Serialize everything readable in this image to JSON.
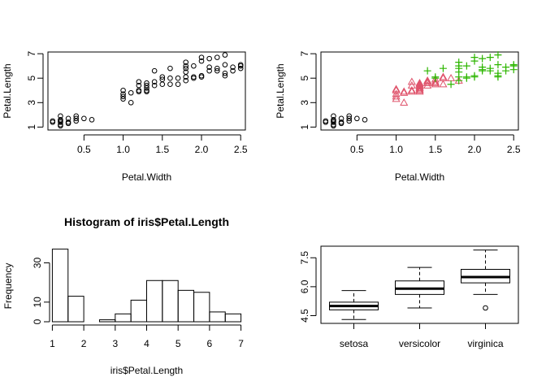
{
  "chart_data": [
    {
      "type": "scatter",
      "xlabel": "Petal.Width",
      "ylabel": "Petal.Length",
      "xlim": [
        0.04,
        2.56
      ],
      "ylim": [
        0.76,
        7.14
      ],
      "xticks": [
        "0.5",
        "1.0",
        "1.5",
        "2.0",
        "2.5"
      ],
      "yticks": [
        "1",
        "3",
        "5",
        "7"
      ],
      "marker": "open circle",
      "series": [
        {
          "color": "#000000",
          "points": [
            [
              0.1,
              1.4
            ],
            [
              0.1,
              1.5
            ],
            [
              0.2,
              1.1
            ],
            [
              0.2,
              1.2
            ],
            [
              0.2,
              1.4
            ],
            [
              0.2,
              1.5
            ],
            [
              0.2,
              1.6
            ],
            [
              0.2,
              1.9
            ],
            [
              0.3,
              1.3
            ],
            [
              0.3,
              1.4
            ],
            [
              0.3,
              1.7
            ],
            [
              0.4,
              1.5
            ],
            [
              0.4,
              1.7
            ],
            [
              0.4,
              1.9
            ],
            [
              0.5,
              1.7
            ],
            [
              0.6,
              1.6
            ],
            [
              1.0,
              3.3
            ],
            [
              1.0,
              3.5
            ],
            [
              1.0,
              3.7
            ],
            [
              1.0,
              4.0
            ],
            [
              1.1,
              3.0
            ],
            [
              1.1,
              3.8
            ],
            [
              1.2,
              3.9
            ],
            [
              1.2,
              4.0
            ],
            [
              1.2,
              4.4
            ],
            [
              1.2,
              4.7
            ],
            [
              1.3,
              3.9
            ],
            [
              1.3,
              4.0
            ],
            [
              1.3,
              4.2
            ],
            [
              1.3,
              4.4
            ],
            [
              1.3,
              4.6
            ],
            [
              1.4,
              4.4
            ],
            [
              1.4,
              4.7
            ],
            [
              1.4,
              5.6
            ],
            [
              1.5,
              4.5
            ],
            [
              1.5,
              4.9
            ],
            [
              1.5,
              5.1
            ],
            [
              1.6,
              4.5
            ],
            [
              1.6,
              5.0
            ],
            [
              1.6,
              5.8
            ],
            [
              1.7,
              4.5
            ],
            [
              1.7,
              5.0
            ],
            [
              1.8,
              4.8
            ],
            [
              1.8,
              5.1
            ],
            [
              1.8,
              5.5
            ],
            [
              1.8,
              5.8
            ],
            [
              1.8,
              6.0
            ],
            [
              1.8,
              6.3
            ],
            [
              1.9,
              5.0
            ],
            [
              1.9,
              5.1
            ],
            [
              1.9,
              6.0
            ],
            [
              2.0,
              5.1
            ],
            [
              2.0,
              5.2
            ],
            [
              2.0,
              6.4
            ],
            [
              2.0,
              6.7
            ],
            [
              2.1,
              5.6
            ],
            [
              2.1,
              5.9
            ],
            [
              2.1,
              6.6
            ],
            [
              2.2,
              5.6
            ],
            [
              2.2,
              5.8
            ],
            [
              2.2,
              6.7
            ],
            [
              2.3,
              5.2
            ],
            [
              2.3,
              5.4
            ],
            [
              2.3,
              6.1
            ],
            [
              2.3,
              6.9
            ],
            [
              2.4,
              5.6
            ],
            [
              2.4,
              5.9
            ],
            [
              2.5,
              5.8
            ],
            [
              2.5,
              6.1
            ],
            [
              2.5,
              6.0
            ]
          ]
        }
      ]
    },
    {
      "type": "scatter",
      "xlabel": "Petal.Width",
      "ylabel": "Petal.Length",
      "xlim": [
        0.04,
        2.56
      ],
      "ylim": [
        0.76,
        7.14
      ],
      "xticks": [
        "0.5",
        "1.0",
        "1.5",
        "2.0",
        "2.5"
      ],
      "yticks": [
        "1",
        "3",
        "5",
        "7"
      ],
      "series": [
        {
          "marker": "open circle",
          "color": "#000000",
          "points": [
            [
              0.1,
              1.4
            ],
            [
              0.1,
              1.5
            ],
            [
              0.2,
              1.1
            ],
            [
              0.2,
              1.2
            ],
            [
              0.2,
              1.4
            ],
            [
              0.2,
              1.5
            ],
            [
              0.2,
              1.6
            ],
            [
              0.2,
              1.9
            ],
            [
              0.3,
              1.3
            ],
            [
              0.3,
              1.4
            ],
            [
              0.3,
              1.7
            ],
            [
              0.4,
              1.5
            ],
            [
              0.4,
              1.7
            ],
            [
              0.4,
              1.9
            ],
            [
              0.5,
              1.7
            ],
            [
              0.6,
              1.6
            ]
          ]
        },
        {
          "marker": "open triangle",
          "color": "#DF536B",
          "points": [
            [
              1.0,
              3.3
            ],
            [
              1.0,
              3.5
            ],
            [
              1.0,
              3.7
            ],
            [
              1.0,
              4.0
            ],
            [
              1.0,
              4.1
            ],
            [
              1.1,
              3.0
            ],
            [
              1.1,
              3.8
            ],
            [
              1.1,
              3.9
            ],
            [
              1.2,
              3.9
            ],
            [
              1.2,
              4.0
            ],
            [
              1.2,
              4.4
            ],
            [
              1.2,
              4.7
            ],
            [
              1.3,
              3.9
            ],
            [
              1.3,
              4.0
            ],
            [
              1.3,
              4.1
            ],
            [
              1.3,
              4.2
            ],
            [
              1.3,
              4.3
            ],
            [
              1.3,
              4.4
            ],
            [
              1.3,
              4.5
            ],
            [
              1.3,
              4.6
            ],
            [
              1.4,
              4.4
            ],
            [
              1.4,
              4.6
            ],
            [
              1.4,
              4.7
            ],
            [
              1.4,
              4.8
            ],
            [
              1.5,
              4.5
            ],
            [
              1.5,
              4.6
            ],
            [
              1.5,
              4.7
            ],
            [
              1.5,
              4.9
            ],
            [
              1.6,
              4.5
            ],
            [
              1.6,
              5.0
            ],
            [
              1.6,
              5.1
            ],
            [
              1.7,
              5.0
            ],
            [
              1.8,
              4.8
            ]
          ]
        },
        {
          "marker": "plus",
          "color": "#2DB600",
          "points": [
            [
              1.4,
              5.6
            ],
            [
              1.5,
              5.0
            ],
            [
              1.5,
              5.1
            ],
            [
              1.6,
              5.8
            ],
            [
              1.7,
              4.5
            ],
            [
              1.8,
              4.8
            ],
            [
              1.8,
              5.1
            ],
            [
              1.8,
              5.5
            ],
            [
              1.8,
              5.8
            ],
            [
              1.8,
              6.0
            ],
            [
              1.8,
              6.3
            ],
            [
              1.9,
              5.0
            ],
            [
              1.9,
              5.1
            ],
            [
              1.9,
              6.0
            ],
            [
              2.0,
              5.1
            ],
            [
              2.0,
              5.2
            ],
            [
              2.0,
              6.4
            ],
            [
              2.0,
              6.7
            ],
            [
              2.1,
              5.6
            ],
            [
              2.1,
              5.7
            ],
            [
              2.1,
              5.9
            ],
            [
              2.1,
              6.6
            ],
            [
              2.2,
              5.6
            ],
            [
              2.2,
              5.8
            ],
            [
              2.2,
              6.7
            ],
            [
              2.3,
              5.1
            ],
            [
              2.3,
              5.2
            ],
            [
              2.3,
              5.4
            ],
            [
              2.3,
              6.1
            ],
            [
              2.3,
              6.9
            ],
            [
              2.4,
              5.6
            ],
            [
              2.4,
              5.9
            ],
            [
              2.5,
              5.7
            ],
            [
              2.5,
              6.0
            ],
            [
              2.5,
              6.1
            ]
          ]
        }
      ]
    },
    {
      "type": "bar",
      "title": "Histogram of iris$Petal.Length",
      "xlabel": "iris$Petal.Length",
      "ylabel": "Frequency",
      "bins": [
        [
          1.0,
          1.5
        ],
        [
          1.5,
          2.0
        ],
        [
          2.0,
          2.5
        ],
        [
          2.5,
          3.0
        ],
        [
          3.0,
          3.5
        ],
        [
          3.5,
          4.0
        ],
        [
          4.0,
          4.5
        ],
        [
          4.5,
          5.0
        ],
        [
          5.0,
          5.5
        ],
        [
          5.5,
          6.0
        ],
        [
          6.0,
          6.5
        ],
        [
          6.5,
          7.0
        ]
      ],
      "values": [
        37,
        13,
        0,
        1,
        4,
        11,
        21,
        21,
        16,
        15,
        5,
        4
      ],
      "xlim": [
        0.86,
        7.14
      ],
      "ylim": [
        0,
        38.5
      ],
      "xticks": [
        "1",
        "2",
        "3",
        "4",
        "5",
        "6",
        "7"
      ],
      "yticks": [
        "0",
        "10",
        "30"
      ],
      "ytick_values": [
        0,
        10,
        30
      ]
    },
    {
      "type": "box",
      "categories": [
        "setosa",
        "versicolor",
        "virginica"
      ],
      "ylim": [
        4.1,
        8.1
      ],
      "yticks": [
        "4.5",
        "6.0",
        "7.5"
      ],
      "ytick_values": [
        4.5,
        6.0,
        7.5
      ],
      "boxes": [
        {
          "whisker_low": 4.3,
          "q1": 4.8,
          "median": 5.0,
          "q3": 5.2,
          "whisker_high": 5.8,
          "outliers": []
        },
        {
          "whisker_low": 4.9,
          "q1": 5.6,
          "median": 5.9,
          "q3": 6.3,
          "whisker_high": 7.0,
          "outliers": []
        },
        {
          "whisker_low": 5.6,
          "q1": 6.2,
          "median": 6.5,
          "q3": 6.9,
          "whisker_high": 7.9,
          "outliers": [
            4.9
          ]
        }
      ]
    }
  ]
}
